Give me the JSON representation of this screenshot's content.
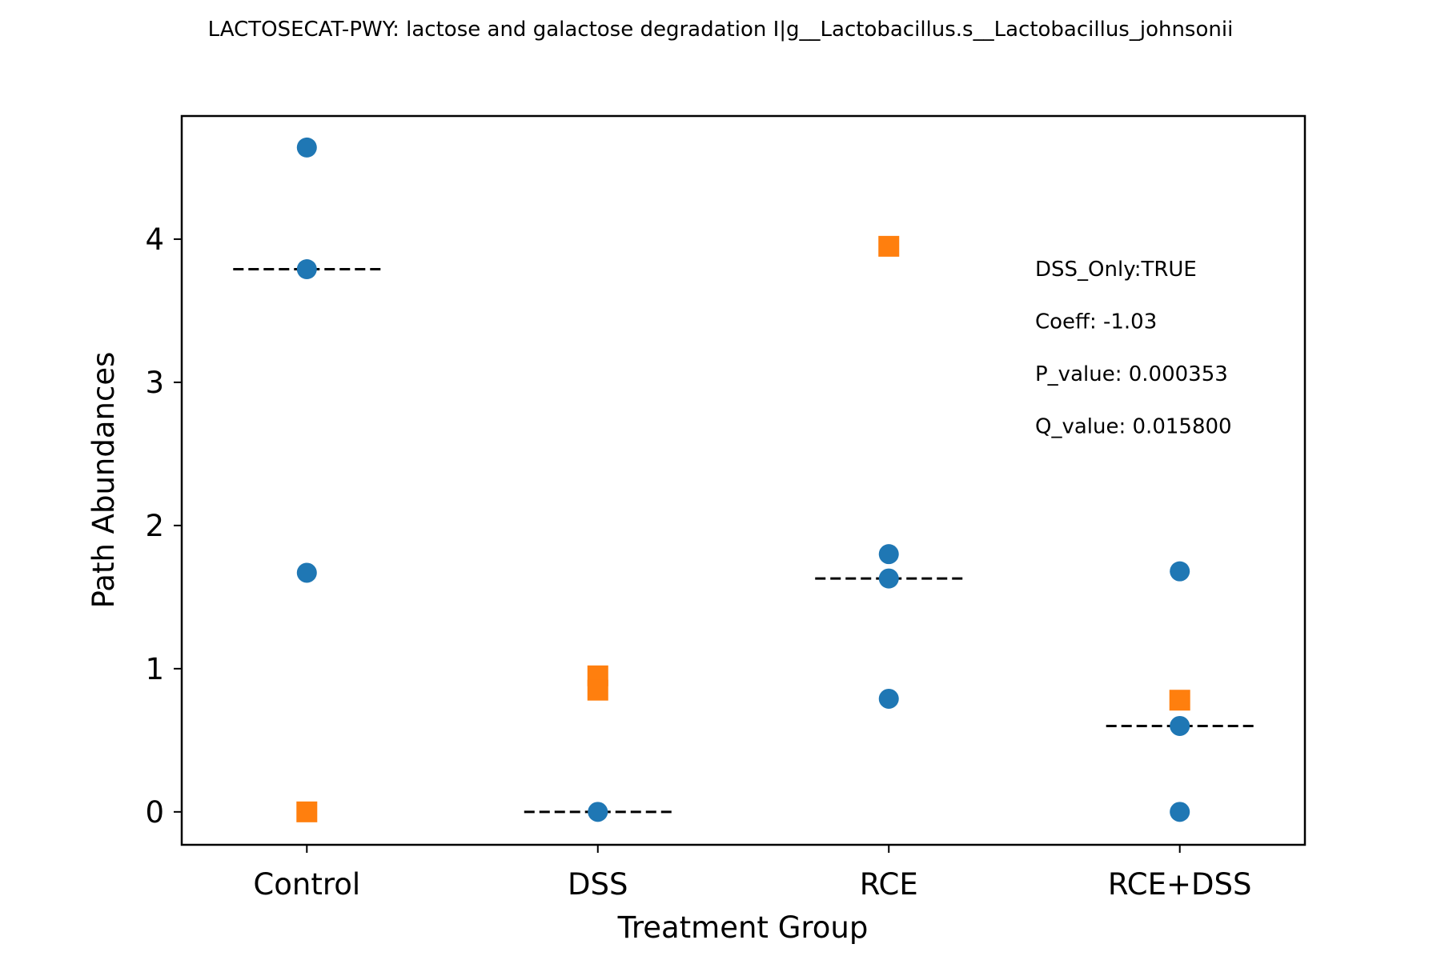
{
  "chart_data": {
    "type": "scatter",
    "title": "LACTOSECAT-PWY: lactose and galactose degradation I|g__Lactobacillus.s__Lactobacillus_johnsonii",
    "xlabel": "Treatment Group",
    "ylabel": "Path Abundances",
    "categories": [
      "Control",
      "DSS",
      "RCE",
      "RCE+DSS"
    ],
    "ylim": [
      -0.23,
      4.86
    ],
    "yticks": [
      0,
      1,
      2,
      3,
      4
    ],
    "grid": false,
    "legend": "none",
    "series": [
      {
        "marker": "circle",
        "color": "#1f77b4",
        "points": [
          {
            "x": "Control",
            "y": 4.64
          },
          {
            "x": "Control",
            "y": 3.79
          },
          {
            "x": "Control",
            "y": 1.67
          },
          {
            "x": "DSS",
            "y": 0.0
          },
          {
            "x": "RCE",
            "y": 1.8
          },
          {
            "x": "RCE",
            "y": 1.63
          },
          {
            "x": "RCE",
            "y": 0.79
          },
          {
            "x": "RCE+DSS",
            "y": 1.68
          },
          {
            "x": "RCE+DSS",
            "y": 0.6
          },
          {
            "x": "RCE+DSS",
            "y": 0.0
          }
        ]
      },
      {
        "marker": "square",
        "color": "#ff7f0e",
        "points": [
          {
            "x": "Control",
            "y": 0.0
          },
          {
            "x": "DSS",
            "y": 0.95
          },
          {
            "x": "DSS",
            "y": 0.85
          },
          {
            "x": "RCE",
            "y": 3.95
          },
          {
            "x": "RCE+DSS",
            "y": 0.78
          }
        ]
      }
    ],
    "medians": [
      {
        "x": "Control",
        "y": 3.79
      },
      {
        "x": "DSS",
        "y": 0.0
      },
      {
        "x": "RCE",
        "y": 1.63
      },
      {
        "x": "RCE+DSS",
        "y": 0.6
      }
    ],
    "annotations": [
      "DSS_Only:TRUE",
      "Coeff: -1.03",
      "P_value: 0.000353",
      "Q_value: 0.015800"
    ]
  }
}
